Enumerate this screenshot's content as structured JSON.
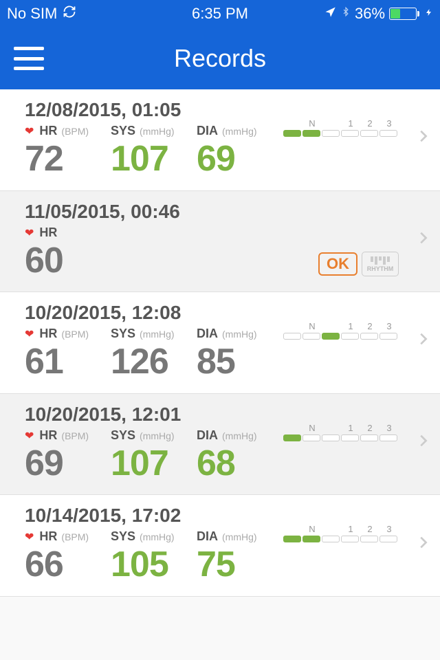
{
  "status": {
    "carrier": "No SIM",
    "time": "6:35 PM",
    "battery_pct": "36%",
    "battery_fill_pct": 36
  },
  "nav": {
    "title": "Records"
  },
  "labels": {
    "hr": "HR",
    "bpm": "(BPM)",
    "sys": "SYS",
    "dia": "DIA",
    "mmhg": "(mmHg)",
    "ok": "OK",
    "rhythm": "RHYTHM",
    "gauge_n": "N",
    "gauge_1": "1",
    "gauge_2": "2",
    "gauge_3": "3"
  },
  "colors": {
    "header_blue": "#1565d8",
    "value_green": "#7cb342",
    "value_gray": "#777777",
    "ok_orange": "#e87f2e",
    "heart_red": "#e53935"
  },
  "records": [
    {
      "datetime": "12/08/2015, 01:05",
      "hr": "72",
      "sys": "107",
      "dia": "69",
      "hr_color": "gray",
      "sys_color": "green",
      "dia_color": "green",
      "show_bp": true,
      "gauge_fill": [
        true,
        true,
        false,
        false,
        false,
        false
      ],
      "bg": "white"
    },
    {
      "datetime": "11/05/2015, 00:46",
      "hr": "60",
      "hr_color": "gray",
      "show_bp": false,
      "show_ok_rhythm": true,
      "bg": "alt"
    },
    {
      "datetime": "10/20/2015, 12:08",
      "hr": "61",
      "sys": "126",
      "dia": "85",
      "hr_color": "gray",
      "sys_color": "gray",
      "dia_color": "gray",
      "show_bp": true,
      "gauge_fill": [
        false,
        false,
        true,
        false,
        false,
        false
      ],
      "bg": "white"
    },
    {
      "datetime": "10/20/2015, 12:01",
      "hr": "69",
      "sys": "107",
      "dia": "68",
      "hr_color": "gray",
      "sys_color": "green",
      "dia_color": "green",
      "show_bp": true,
      "gauge_fill": [
        true,
        false,
        false,
        false,
        false,
        false
      ],
      "bg": "alt"
    },
    {
      "datetime": "10/14/2015, 17:02",
      "hr": "66",
      "sys": "105",
      "dia": "75",
      "hr_color": "gray",
      "sys_color": "green",
      "dia_color": "green",
      "show_bp": true,
      "gauge_fill": [
        true,
        true,
        false,
        false,
        false,
        false
      ],
      "bg": "white"
    }
  ]
}
